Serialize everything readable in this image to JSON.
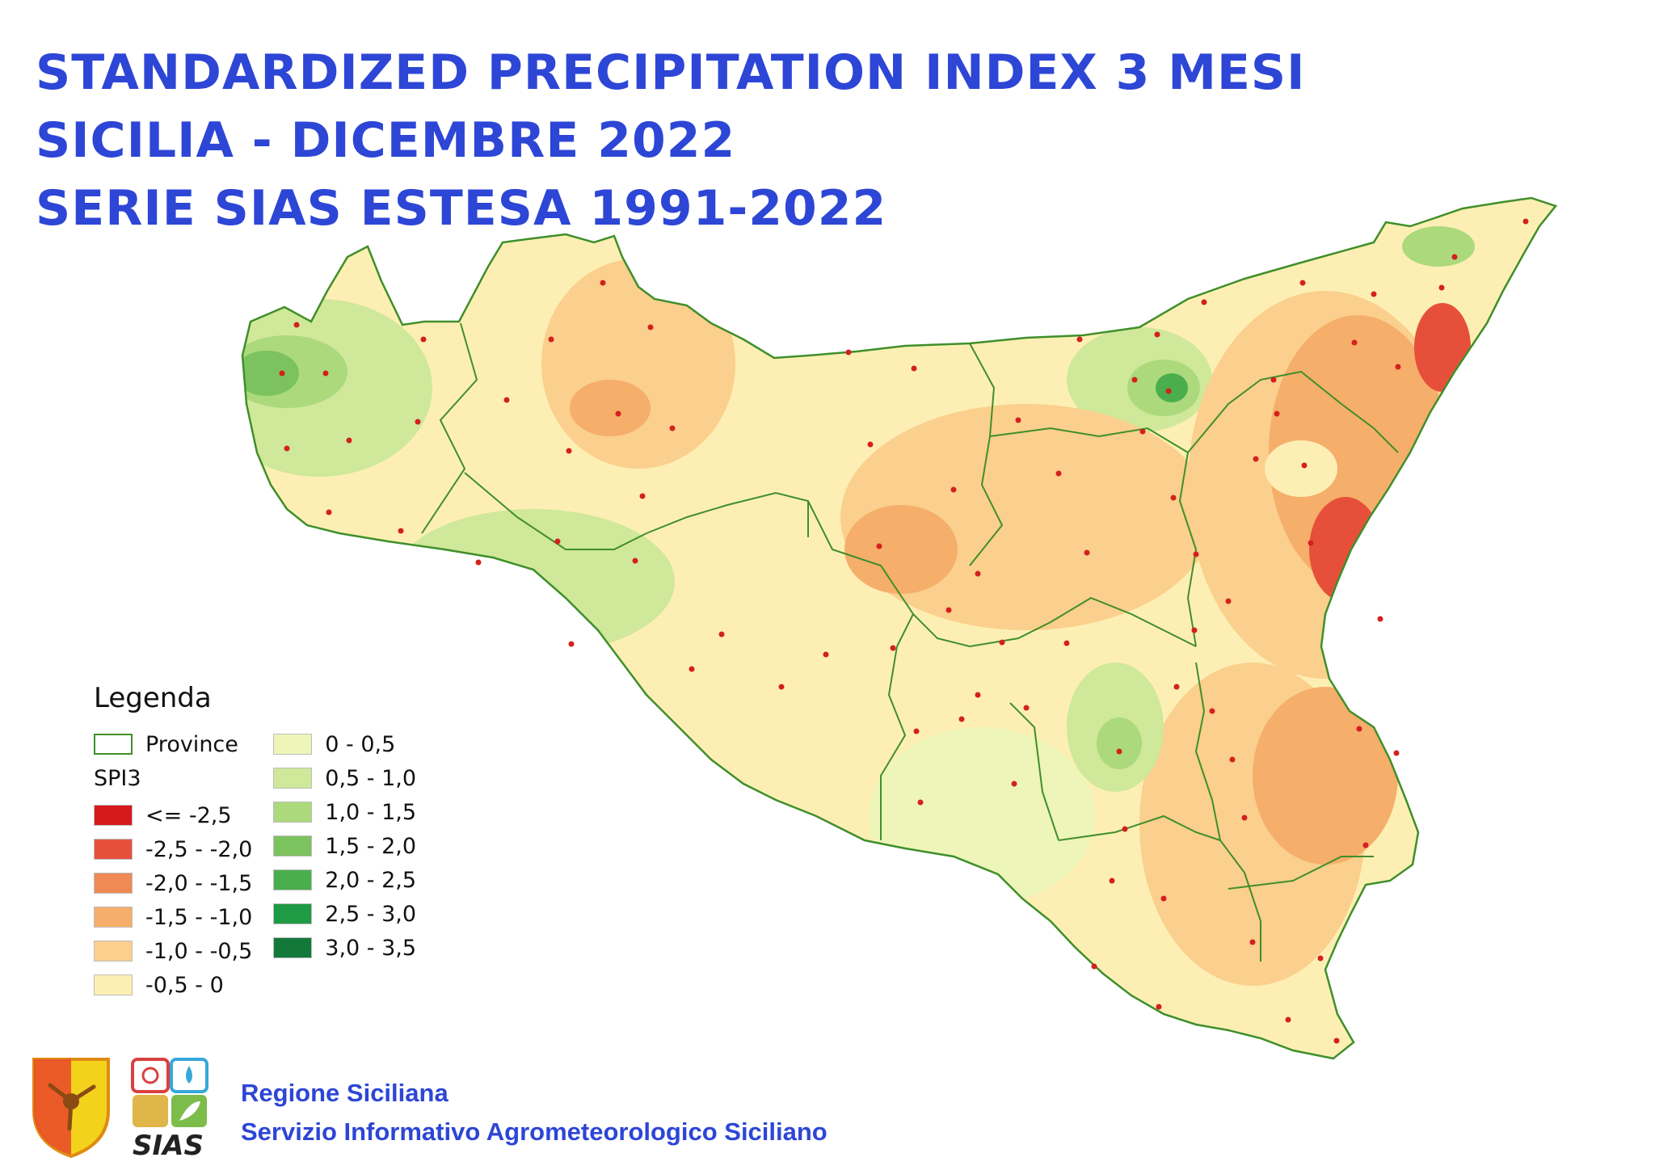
{
  "title": {
    "line1": "STANDARDIZED PRECIPITATION INDEX 3 MESI",
    "line2": "SICILIA - DICEMBRE 2022",
    "line3": "SERIE SIAS ESTESA 1991-2022"
  },
  "legend": {
    "title": "Legenda",
    "province_label": "Province",
    "index_label": "SPI3",
    "classes": [
      {
        "label": "<= -2,5",
        "color": "#d7191c"
      },
      {
        "label": "-2,5 - -2,0",
        "color": "#e6503a"
      },
      {
        "label": "-2,0 - -1,5",
        "color": "#f08a55"
      },
      {
        "label": "-1,5 - -1,0",
        "color": "#f6ae6b"
      },
      {
        "label": "-1,0 - -0,5",
        "color": "#fbcf8d"
      },
      {
        "label": "-0,5 - 0",
        "color": "#fdefb4"
      },
      {
        "label": "0 - 0,5",
        "color": "#eef5b8"
      },
      {
        "label": "0,5 - 1,0",
        "color": "#cfe89a"
      },
      {
        "label": "1,0 - 1,5",
        "color": "#acd97c"
      },
      {
        "label": "1,5 - 2,0",
        "color": "#7cc25f"
      },
      {
        "label": "2,0 - 2,5",
        "color": "#4aae4d"
      },
      {
        "label": "2,5 - 3,0",
        "color": "#1f9a45"
      },
      {
        "label": "3,0 - 3,5",
        "color": "#12793a"
      }
    ]
  },
  "colors": {
    "title_blue": "#2d46d6",
    "province_border": "#3f8f2a",
    "station_dot": "#d4201f"
  },
  "footer": {
    "line1": "Regione Siciliana",
    "line2": "Servizio Informativo Agrometeorologico Siciliano",
    "logo_text": "SIAS"
  },
  "icons": {
    "region_emblem": "trinacria-shield-icon",
    "sias_logo": "sias-logo-icon"
  }
}
